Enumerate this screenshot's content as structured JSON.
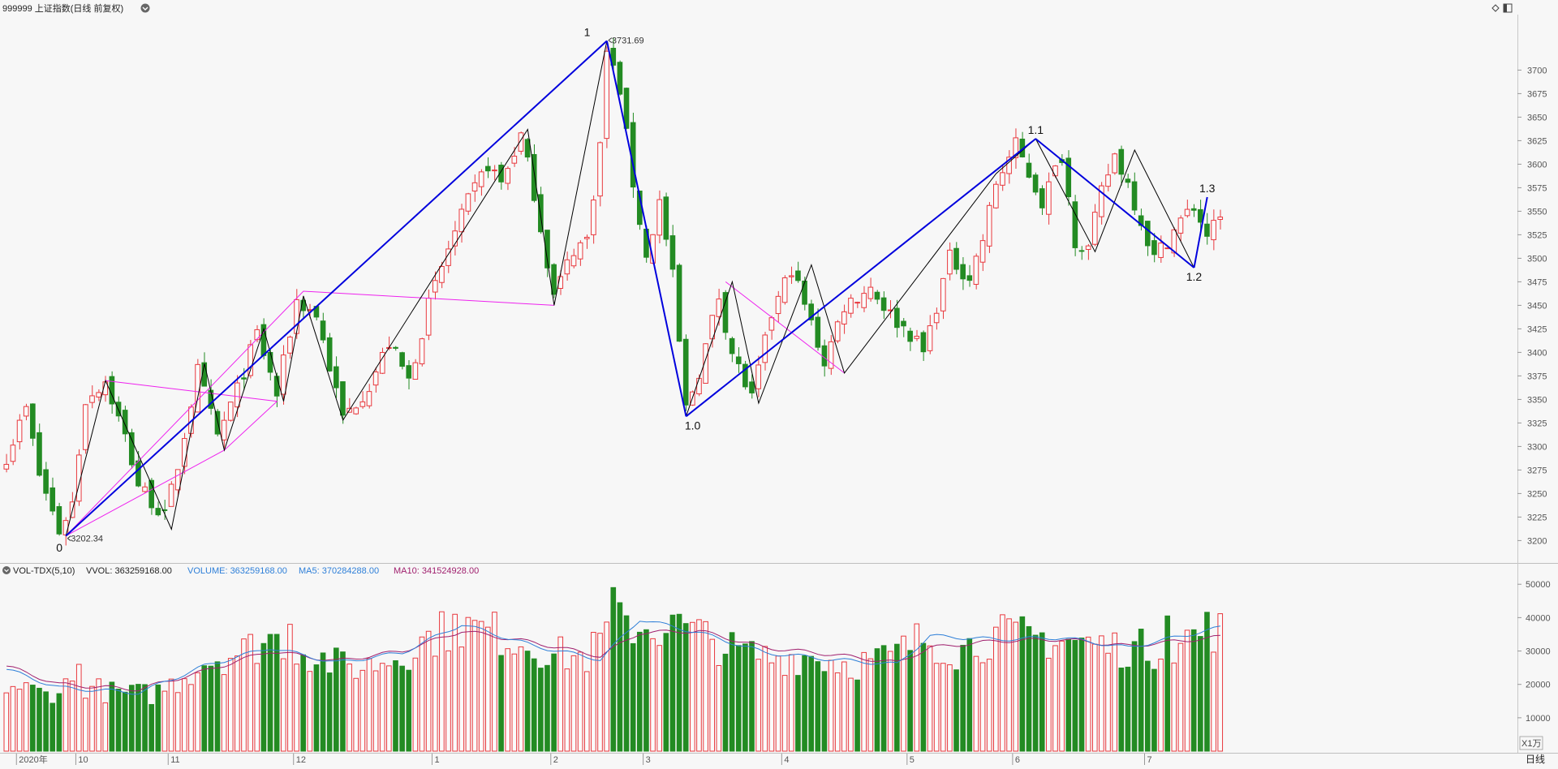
{
  "header": {
    "title": "999999 上证指数(日线 前复权)",
    "controls": [
      "diamond-icon",
      "panel-toggle-icon"
    ]
  },
  "colors": {
    "up": "#e8393e",
    "down": "#238b23",
    "wave_major": "#0000dd",
    "wave_minor": "#000000",
    "channel": "#ee22ee",
    "ma5": "#2e7fd8",
    "ma10": "#a0206e",
    "background": "#f7f7f7",
    "axis_text": "#555555"
  },
  "chart_data": [
    {
      "type": "candlestick",
      "name": "price",
      "y_axis": {
        "min": 3190,
        "max": 3740,
        "ticks": [
          3200,
          3225,
          3250,
          3275,
          3300,
          3325,
          3350,
          3375,
          3400,
          3425,
          3450,
          3475,
          3500,
          3525,
          3550,
          3575,
          3600,
          3625,
          3650,
          3675,
          3700
        ]
      },
      "period": {
        "start": "2020-09",
        "end": "2021-07",
        "bars": 190
      },
      "x_axis_labels": [
        {
          "label": "2020年",
          "bar": 2
        },
        {
          "label": "10",
          "bar": 11
        },
        {
          "label": "11",
          "bar": 25
        },
        {
          "label": "12",
          "bar": 44
        },
        {
          "label": "1",
          "bar": 65
        },
        {
          "label": "2",
          "bar": 83
        },
        {
          "label": "3",
          "bar": 97
        },
        {
          "label": "4",
          "bar": 118
        },
        {
          "label": "5",
          "bar": 137
        },
        {
          "label": "6",
          "bar": 153
        },
        {
          "label": "7",
          "bar": 173
        }
      ],
      "anchors": [
        {
          "bar": 0,
          "close": 3290
        },
        {
          "bar": 3,
          "close": 3340
        },
        {
          "bar": 5,
          "close": 3270
        },
        {
          "bar": 8,
          "close": 3210
        },
        {
          "bar": 10,
          "close": 3240
        },
        {
          "bar": 12,
          "close": 3350
        },
        {
          "bar": 15,
          "close": 3370
        },
        {
          "bar": 18,
          "close": 3310
        },
        {
          "bar": 20,
          "close": 3260
        },
        {
          "bar": 24,
          "close": 3225
        },
        {
          "bar": 26,
          "close": 3280
        },
        {
          "bar": 29,
          "close": 3380
        },
        {
          "bar": 32,
          "close": 3310
        },
        {
          "bar": 35,
          "close": 3360
        },
        {
          "bar": 38,
          "close": 3420
        },
        {
          "bar": 41,
          "close": 3355
        },
        {
          "bar": 44,
          "close": 3455
        },
        {
          "bar": 47,
          "close": 3440
        },
        {
          "bar": 51,
          "close": 3330
        },
        {
          "bar": 55,
          "close": 3365
        },
        {
          "bar": 58,
          "close": 3410
        },
        {
          "bar": 61,
          "close": 3370
        },
        {
          "bar": 64,
          "close": 3450
        },
        {
          "bar": 67,
          "close": 3510
        },
        {
          "bar": 70,
          "close": 3560
        },
        {
          "bar": 73,
          "close": 3600
        },
        {
          "bar": 75,
          "close": 3580
        },
        {
          "bar": 78,
          "close": 3630
        },
        {
          "bar": 80,
          "close": 3570
        },
        {
          "bar": 83,
          "close": 3460
        },
        {
          "bar": 86,
          "close": 3510
        },
        {
          "bar": 88,
          "close": 3520
        },
        {
          "bar": 90,
          "close": 3620
        },
        {
          "bar": 91,
          "close": 3720
        },
        {
          "bar": 93,
          "close": 3680
        },
        {
          "bar": 95,
          "close": 3580
        },
        {
          "bar": 97,
          "close": 3500
        },
        {
          "bar": 99,
          "close": 3560
        },
        {
          "bar": 101,
          "close": 3480
        },
        {
          "bar": 103,
          "close": 3340
        },
        {
          "bar": 105,
          "close": 3380
        },
        {
          "bar": 108,
          "close": 3460
        },
        {
          "bar": 110,
          "close": 3400
        },
        {
          "bar": 113,
          "close": 3350
        },
        {
          "bar": 116,
          "close": 3440
        },
        {
          "bar": 119,
          "close": 3490
        },
        {
          "bar": 122,
          "close": 3430
        },
        {
          "bar": 124,
          "close": 3390
        },
        {
          "bar": 127,
          "close": 3450
        },
        {
          "bar": 131,
          "close": 3470
        },
        {
          "bar": 134,
          "close": 3440
        },
        {
          "bar": 137,
          "close": 3420
        },
        {
          "bar": 139,
          "close": 3400
        },
        {
          "bar": 141,
          "close": 3450
        },
        {
          "bar": 143,
          "close": 3500
        },
        {
          "bar": 146,
          "close": 3480
        },
        {
          "bar": 148,
          "close": 3520
        },
        {
          "bar": 150,
          "close": 3580
        },
        {
          "bar": 153,
          "close": 3620
        },
        {
          "bar": 155,
          "close": 3590
        },
        {
          "bar": 157,
          "close": 3560
        },
        {
          "bar": 160,
          "close": 3610
        },
        {
          "bar": 162,
          "close": 3520
        },
        {
          "bar": 164,
          "close": 3510
        },
        {
          "bar": 166,
          "close": 3570
        },
        {
          "bar": 168,
          "close": 3610
        },
        {
          "bar": 170,
          "close": 3580
        },
        {
          "bar": 172,
          "close": 3540
        },
        {
          "bar": 174,
          "close": 3500
        },
        {
          "bar": 176,
          "close": 3520
        },
        {
          "bar": 178,
          "close": 3540
        },
        {
          "bar": 180,
          "close": 3555
        },
        {
          "bar": 182,
          "close": 3525
        },
        {
          "bar": 184,
          "close": 3540
        }
      ],
      "bars_shown": 185,
      "price_labels": [
        {
          "text": "3731.69",
          "bar": 91,
          "price": 3731.69,
          "side": "right"
        },
        {
          "text": "3202.34",
          "bar": 9,
          "price": 3202.34,
          "side": "right"
        }
      ],
      "wave_labels": [
        {
          "text": "0",
          "bar": 8,
          "price": 3202
        },
        {
          "text": "1",
          "bar": 88,
          "price": 3731
        },
        {
          "text": "1.0",
          "bar": 104,
          "price": 3332
        },
        {
          "text": "1.1",
          "bar": 156,
          "price": 3627
        },
        {
          "text": "1.2",
          "bar": 180,
          "price": 3490
        },
        {
          "text": "1.3",
          "bar": 182,
          "price": 3565
        }
      ],
      "wave_lines_major": [
        [
          [
            9,
            3205
          ],
          [
            91,
            3731
          ]
        ],
        [
          [
            91,
            3731
          ],
          [
            103,
            3332
          ]
        ],
        [
          [
            103,
            3332
          ],
          [
            156,
            3627
          ]
        ],
        [
          [
            156,
            3627
          ],
          [
            180,
            3490
          ]
        ],
        [
          [
            180,
            3490
          ],
          [
            182,
            3565
          ]
        ]
      ],
      "wave_lines_minor": [
        [
          [
            9,
            3205
          ],
          [
            15,
            3370
          ],
          [
            25,
            3212
          ],
          [
            30,
            3388
          ],
          [
            33,
            3296
          ],
          [
            39,
            3425
          ],
          [
            42,
            3348
          ],
          [
            45,
            3460
          ],
          [
            51,
            3328
          ],
          [
            79,
            3637
          ],
          [
            83,
            3450
          ],
          [
            91,
            3731
          ]
        ],
        [
          [
            103,
            3332
          ],
          [
            110,
            3475
          ],
          [
            114,
            3346
          ],
          [
            122,
            3493
          ],
          [
            127,
            3378
          ],
          [
            150,
            3590
          ],
          [
            156,
            3627
          ],
          [
            165,
            3507
          ],
          [
            171,
            3615
          ],
          [
            180,
            3490
          ]
        ]
      ],
      "channel_lines": [
        [
          [
            15,
            3370
          ],
          [
            41,
            3348
          ],
          [
            33,
            3296
          ],
          [
            9,
            3205
          ],
          [
            45,
            3465
          ],
          [
            83,
            3450
          ]
        ],
        [
          [
            109,
            3475
          ],
          [
            127,
            3378
          ]
        ]
      ]
    },
    {
      "type": "bar",
      "name": "volume",
      "legend": {
        "indicator": "VOL-TDX(5,10)",
        "vvol": "VVOL: 363259168.00",
        "volume": "VOLUME: 363259168.00",
        "ma5": "MA5: 370284288.00",
        "ma10": "MA10: 341524928.00"
      },
      "y_axis": {
        "min": 0,
        "max": 52000,
        "ticks": [
          10000,
          20000,
          30000,
          40000,
          50000
        ],
        "unit": "X1万"
      },
      "anchors": [
        {
          "bar": 0,
          "vol": 20000
        },
        {
          "bar": 6,
          "vol": 17000
        },
        {
          "bar": 10,
          "vol": 20500
        },
        {
          "bar": 16,
          "vol": 17500
        },
        {
          "bar": 22,
          "vol": 17000
        },
        {
          "bar": 26,
          "vol": 21000
        },
        {
          "bar": 30,
          "vol": 27000
        },
        {
          "bar": 36,
          "vol": 30000
        },
        {
          "bar": 40,
          "vol": 34000
        },
        {
          "bar": 45,
          "vol": 30000
        },
        {
          "bar": 50,
          "vol": 26000
        },
        {
          "bar": 54,
          "vol": 25000
        },
        {
          "bar": 60,
          "vol": 29000
        },
        {
          "bar": 65,
          "vol": 35000
        },
        {
          "bar": 69,
          "vol": 37000
        },
        {
          "bar": 73,
          "vol": 36000
        },
        {
          "bar": 78,
          "vol": 33000
        },
        {
          "bar": 83,
          "vol": 29000
        },
        {
          "bar": 88,
          "vol": 28000
        },
        {
          "bar": 92,
          "vol": 38000
        },
        {
          "bar": 98,
          "vol": 37000
        },
        {
          "bar": 104,
          "vol": 36000
        },
        {
          "bar": 110,
          "vol": 30000
        },
        {
          "bar": 116,
          "vol": 28000
        },
        {
          "bar": 122,
          "vol": 28500
        },
        {
          "bar": 128,
          "vol": 26000
        },
        {
          "bar": 134,
          "vol": 28000
        },
        {
          "bar": 139,
          "vol": 34000
        },
        {
          "bar": 144,
          "vol": 30000
        },
        {
          "bar": 150,
          "vol": 34500
        },
        {
          "bar": 156,
          "vol": 34000
        },
        {
          "bar": 162,
          "vol": 33000
        },
        {
          "bar": 168,
          "vol": 31000
        },
        {
          "bar": 174,
          "vol": 30500
        },
        {
          "bar": 178,
          "vol": 33000
        },
        {
          "bar": 182,
          "vol": 36500
        },
        {
          "bar": 184,
          "vol": 36300
        }
      ],
      "spikes": [
        {
          "bar": 92,
          "vol": 49000
        },
        {
          "bar": 68,
          "vol": 41000
        },
        {
          "bar": 102,
          "vol": 41000
        },
        {
          "bar": 43,
          "vol": 38000
        },
        {
          "bar": 176,
          "vol": 40500
        },
        {
          "bar": 11,
          "vol": 26000
        }
      ],
      "ma5_anchors": [
        {
          "bar": 0,
          "vol": 24500
        },
        {
          "bar": 8,
          "vol": 19000
        },
        {
          "bar": 20,
          "vol": 17500
        },
        {
          "bar": 30,
          "vol": 25500
        },
        {
          "bar": 40,
          "vol": 31000
        },
        {
          "bar": 50,
          "vol": 26500
        },
        {
          "bar": 60,
          "vol": 29500
        },
        {
          "bar": 69,
          "vol": 38000
        },
        {
          "bar": 80,
          "vol": 31500
        },
        {
          "bar": 90,
          "vol": 27500
        },
        {
          "bar": 96,
          "vol": 39500
        },
        {
          "bar": 105,
          "vol": 35500
        },
        {
          "bar": 115,
          "vol": 29500
        },
        {
          "bar": 125,
          "vol": 27500
        },
        {
          "bar": 135,
          "vol": 26000
        },
        {
          "bar": 140,
          "vol": 34500
        },
        {
          "bar": 150,
          "vol": 33500
        },
        {
          "bar": 160,
          "vol": 34000
        },
        {
          "bar": 170,
          "vol": 31000
        },
        {
          "bar": 184,
          "vol": 37000
        }
      ],
      "ma10_anchors": [
        {
          "bar": 0,
          "vol": 25500
        },
        {
          "bar": 8,
          "vol": 20000
        },
        {
          "bar": 20,
          "vol": 18500
        },
        {
          "bar": 30,
          "vol": 24000
        },
        {
          "bar": 40,
          "vol": 30000
        },
        {
          "bar": 50,
          "vol": 27000
        },
        {
          "bar": 60,
          "vol": 30000
        },
        {
          "bar": 69,
          "vol": 36000
        },
        {
          "bar": 80,
          "vol": 32500
        },
        {
          "bar": 90,
          "vol": 28500
        },
        {
          "bar": 96,
          "vol": 35500
        },
        {
          "bar": 105,
          "vol": 36000
        },
        {
          "bar": 115,
          "vol": 31000
        },
        {
          "bar": 125,
          "vol": 29000
        },
        {
          "bar": 135,
          "vol": 26500
        },
        {
          "bar": 140,
          "vol": 31000
        },
        {
          "bar": 150,
          "vol": 33000
        },
        {
          "bar": 160,
          "vol": 33500
        },
        {
          "bar": 170,
          "vol": 31500
        },
        {
          "bar": 184,
          "vol": 34200
        }
      ]
    }
  ],
  "footer": {
    "period_label": "日线"
  }
}
